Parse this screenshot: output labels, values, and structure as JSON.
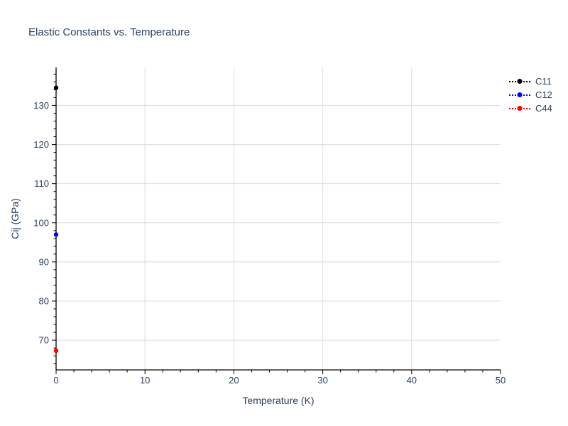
{
  "chart_data": {
    "type": "scatter",
    "title": "Elastic Constants vs. Temperature",
    "xlabel": "Temperature (K)",
    "ylabel": "Cij (GPa)",
    "x_range": [
      0,
      50
    ],
    "y_range": [
      62.4,
      139.7
    ],
    "x_ticks_major": [
      0,
      10,
      20,
      30,
      40,
      50
    ],
    "x_minor_step": 2,
    "y_ticks_major": [
      70,
      80,
      90,
      100,
      110,
      120,
      130
    ],
    "y_minor_step": 2,
    "grid": true,
    "legend_position": "top-right-outside",
    "marker_style": "circle",
    "line_dash": "dot",
    "series": [
      {
        "name": "C11",
        "color": "#000000",
        "x": [
          0
        ],
        "y": [
          134.5
        ]
      },
      {
        "name": "C12",
        "color": "#0000ff",
        "x": [
          0
        ],
        "y": [
          97.0
        ]
      },
      {
        "name": "C44",
        "color": "#ff0000",
        "x": [
          0
        ],
        "y": [
          67.3
        ]
      }
    ],
    "colors": {
      "text": "#2a3f5f",
      "grid": "#dcdcdc",
      "axis": "#000000",
      "background": "#ffffff"
    }
  }
}
